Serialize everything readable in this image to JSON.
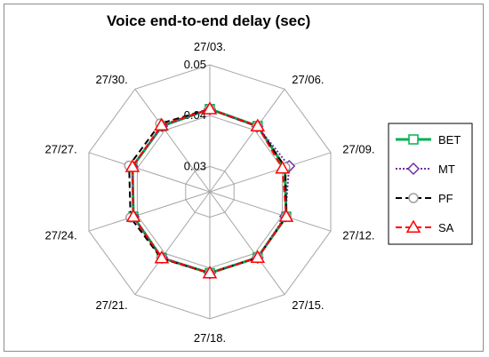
{
  "chart_data": {
    "type": "radar",
    "title": "Voice end-to-end delay (sec)",
    "categories": [
      "27/03.",
      "27/06.",
      "27/09.",
      "27/12.",
      "27/15.",
      "27/18.",
      "27/21.",
      "27/24.",
      "27/27.",
      "27/30."
    ],
    "radial_ticks": [
      "0.03",
      "0.04",
      "0.05"
    ],
    "rmin": 0.025,
    "rmax": 0.05,
    "grid": true,
    "legend_position": "right",
    "series": [
      {
        "name": "BET",
        "color": "#00b050",
        "marker": "square",
        "dash": "solid",
        "values": [
          0.0413,
          0.041,
          0.0405,
          0.0408,
          0.041,
          0.041,
          0.0411,
          0.0408,
          0.041,
          0.041
        ]
      },
      {
        "name": "MT",
        "color": "#7030a0",
        "marker": "diamond",
        "dash": "dotted",
        "values": [
          0.0413,
          0.0409,
          0.0414,
          0.0406,
          0.041,
          0.041,
          0.041,
          0.0408,
          0.041,
          0.041
        ]
      },
      {
        "name": "PF",
        "color": "#000000",
        "marker": "circle",
        "dash": "dashed",
        "values": [
          0.0413,
          0.0409,
          0.0406,
          0.0408,
          0.041,
          0.041,
          0.0412,
          0.0414,
          0.0417,
          0.0416
        ]
      },
      {
        "name": "SA",
        "color": "#ff0000",
        "marker": "triangle",
        "dash": "dashed",
        "values": [
          0.0413,
          0.041,
          0.04,
          0.0408,
          0.041,
          0.041,
          0.0411,
          0.0408,
          0.041,
          0.0412
        ]
      }
    ]
  }
}
